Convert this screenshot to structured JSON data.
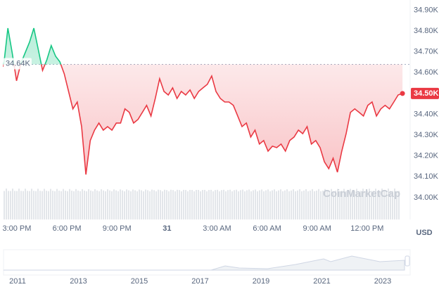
{
  "chart_data": {
    "type": "line",
    "x": [
      14.2,
      14.46,
      14.72,
      14.98,
      15.24,
      15.5,
      15.76,
      16.02,
      16.28,
      16.54,
      16.8,
      17.06,
      17.32,
      17.58,
      17.84,
      18.1,
      18.36,
      18.62,
      18.88,
      19.14,
      19.4,
      19.66,
      19.92,
      20.18,
      20.44,
      20.7,
      20.96,
      21.22,
      21.48,
      21.74,
      22,
      22.26,
      22.52,
      22.78,
      23.04,
      23.3,
      23.56,
      23.82,
      24.08,
      24.34,
      24.6,
      24.86,
      25.12,
      25.38,
      25.64,
      25.9,
      26.16,
      26.42,
      26.68,
      26.94,
      27.2,
      27.46,
      27.72,
      27.98,
      28.24,
      28.5,
      28.76,
      29.02,
      29.28,
      29.54,
      29.8,
      30.06,
      30.32,
      30.58,
      30.84,
      31.1,
      31.36,
      31.62,
      31.88,
      32.14,
      32.4,
      32.66,
      32.92,
      33.18,
      33.44,
      33.7,
      33.96,
      34.22,
      34.48,
      34.74,
      35,
      35.26,
      35.52,
      35.78,
      36.04,
      36.3,
      36.56,
      36.82,
      37.08,
      37.34,
      37.6,
      37.86,
      38.12
    ],
    "series": [
      {
        "color": "#ea3943",
        "above_color": "#16c784",
        "values": [
          34628,
          34814,
          34696,
          34561,
          34645,
          34696,
          34747,
          34814,
          34713,
          34611,
          34662,
          34730,
          34679,
          34652,
          34595,
          34510,
          34426,
          34459,
          34341,
          34111,
          34274,
          34324,
          34358,
          34324,
          34341,
          34324,
          34358,
          34358,
          34426,
          34409,
          34358,
          34375,
          34409,
          34443,
          34392,
          34476,
          34571,
          34510,
          34493,
          34527,
          34476,
          34510,
          34493,
          34517,
          34476,
          34510,
          34527,
          34544,
          34584,
          34510,
          34476,
          34459,
          34459,
          34443,
          34392,
          34341,
          34358,
          34291,
          34324,
          34257,
          34274,
          34223,
          34247,
          34240,
          34257,
          34223,
          34274,
          34291,
          34324,
          34307,
          34341,
          34257,
          34274,
          34240,
          34172,
          34139,
          34189,
          34122,
          34223,
          34307,
          34409,
          34426,
          34409,
          34392,
          34443,
          34459,
          34392,
          34426,
          34443,
          34426,
          34459,
          34493,
          34500
        ]
      }
    ],
    "reference": {
      "value": 34640,
      "label": "34.64K"
    },
    "last_label": {
      "value": 34500,
      "label": "34.50K"
    },
    "xlim": [
      14.2,
      38.58
    ],
    "xticks": [
      {
        "value": 15,
        "label": "3:00 PM"
      },
      {
        "value": 18,
        "label": "6:00 PM"
      },
      {
        "value": 21,
        "label": "9:00 PM"
      },
      {
        "value": 24,
        "label": "31"
      },
      {
        "value": 27,
        "label": "3:00 AM"
      },
      {
        "value": 30,
        "label": "6:00 AM"
      },
      {
        "value": 33,
        "label": "9:00 AM"
      },
      {
        "value": 36,
        "label": "12:00 PM"
      }
    ],
    "ylim": [
      33895,
      34949
    ],
    "yticks": [
      {
        "value": 34000,
        "label": "34.00K"
      },
      {
        "value": 34100,
        "label": "34.10K"
      },
      {
        "value": 34200,
        "label": "34.20K"
      },
      {
        "value": 34300,
        "label": "34.30K"
      },
      {
        "value": 34400,
        "label": "34.40K"
      },
      {
        "value": 34500,
        "label": "34.50K"
      },
      {
        "value": 34600,
        "label": "34.60K"
      },
      {
        "value": 34700,
        "label": "34.70K"
      },
      {
        "value": 34800,
        "label": "34.80K"
      },
      {
        "value": 34900,
        "label": "34.90K"
      }
    ],
    "currency": "USD",
    "watermark": "CoinMarketCap",
    "navigator_labels": [
      "2011",
      "2013",
      "2015",
      "2017",
      "2019",
      "2021",
      "2023"
    ]
  }
}
